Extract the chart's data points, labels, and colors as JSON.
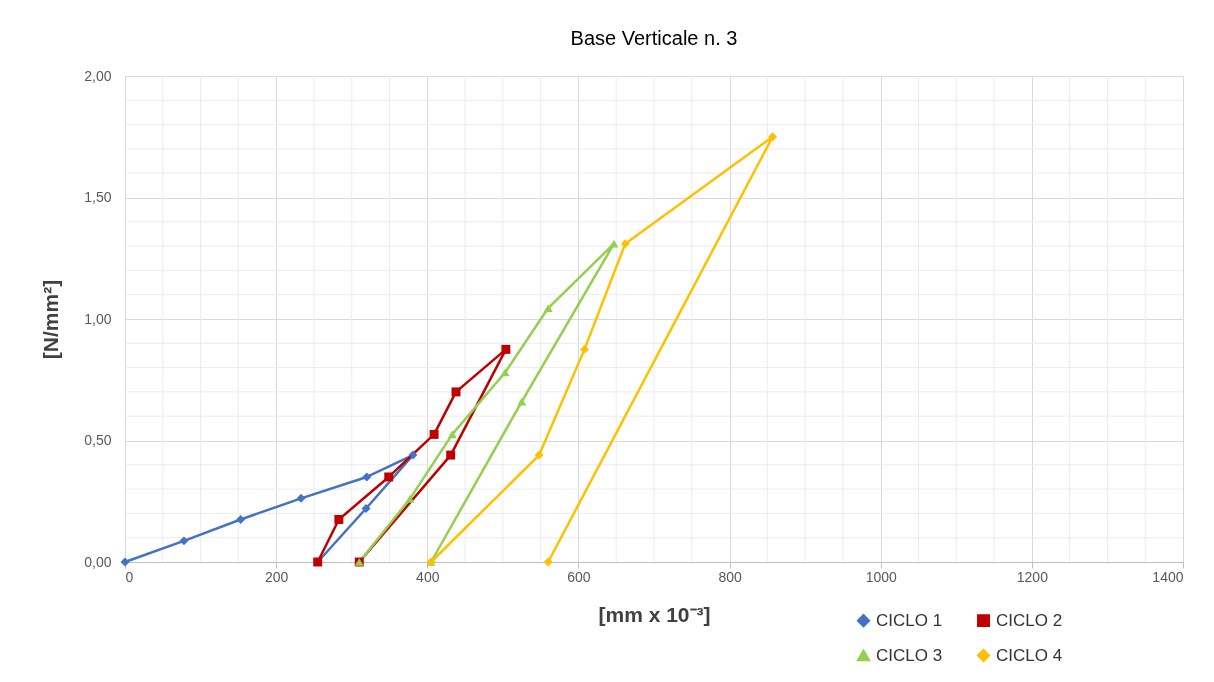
{
  "chart_data": {
    "type": "line",
    "title": "Base Verticale n. 3",
    "xlabel": "[mm x 10⁻³]",
    "ylabel": "[N/mm²]",
    "xlim": [
      0,
      1400
    ],
    "xticks": [
      0,
      200,
      400,
      600,
      800,
      1000,
      1200,
      1400
    ],
    "ylim": [
      0,
      2
    ],
    "yticks": [
      {
        "value": 0,
        "label": "0,00"
      },
      {
        "value": 0.5,
        "label": "0,50"
      },
      {
        "value": 1,
        "label": "1,00"
      },
      {
        "value": 1.5,
        "label": "1,50"
      },
      {
        "value": 2,
        "label": "2,00"
      }
    ],
    "grid": true,
    "legend": "bottom right",
    "series": [
      {
        "name": "CICLO 1",
        "color": "#4472c4",
        "marker": "diamond",
        "x": [
          0,
          78,
          153,
          233,
          320,
          381,
          319,
          255
        ],
        "values": [
          0,
          0.087,
          0.175,
          0.262,
          0.35,
          0.44,
          0.22,
          0
        ]
      },
      {
        "name": "CICLO 2",
        "color": "#c00000",
        "marker": "square",
        "x": [
          255,
          283,
          349,
          409,
          438,
          504,
          431,
          310
        ],
        "values": [
          0,
          0.175,
          0.35,
          0.525,
          0.7,
          0.875,
          0.44,
          0
        ]
      },
      {
        "name": "CICLO 3",
        "color": "#92d050",
        "marker": "triangle",
        "x": [
          310,
          377,
          433,
          503,
          560,
          647,
          525,
          405
        ],
        "values": [
          0,
          0.26,
          0.525,
          0.78,
          1.045,
          1.31,
          0.66,
          0
        ]
      },
      {
        "name": "CICLO 4",
        "color": "#ffc000",
        "marker": "diamond",
        "x": [
          405,
          548,
          608,
          662,
          857,
          560
        ],
        "values": [
          0,
          0.44,
          0.875,
          1.31,
          1.75,
          0
        ]
      }
    ]
  }
}
